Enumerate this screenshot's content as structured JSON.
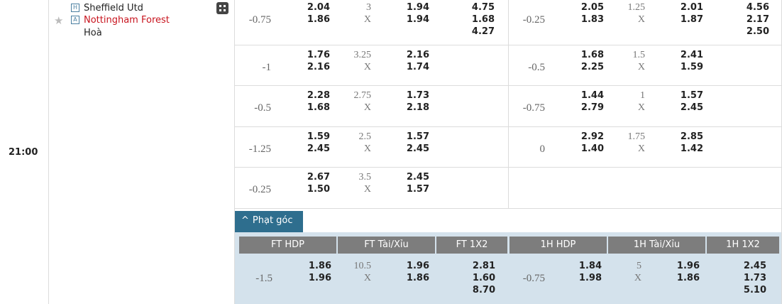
{
  "match": {
    "time": "21:00",
    "home_badge": "H",
    "home": "Sheffield Utd",
    "away_badge": "A",
    "away": "Nottingham Forest",
    "draw": "Hoà"
  },
  "odds_rows": [
    {
      "ft": {
        "hdp": "-0.75",
        "hdp_odds": [
          "2.04",
          "1.86"
        ],
        "ou_line": "3",
        "ou_mid": "X",
        "ou_odds": [
          "1.94",
          "1.94"
        ],
        "x12": [
          "4.75",
          "1.68",
          "4.27"
        ]
      },
      "h1": {
        "hdp": "-0.25",
        "hdp_odds": [
          "2.05",
          "1.83"
        ],
        "ou_line": "1.25",
        "ou_mid": "X",
        "ou_odds": [
          "2.01",
          "1.87"
        ],
        "x12": [
          "4.56",
          "2.17",
          "2.50"
        ]
      }
    },
    {
      "ft": {
        "hdp": "-1",
        "hdp_odds": [
          "1.76",
          "2.16"
        ],
        "ou_line": "3.25",
        "ou_mid": "X",
        "ou_odds": [
          "2.16",
          "1.74"
        ]
      },
      "h1": {
        "hdp": "-0.5",
        "hdp_odds": [
          "1.68",
          "2.25"
        ],
        "ou_line": "1.5",
        "ou_mid": "X",
        "ou_odds": [
          "2.41",
          "1.59"
        ]
      }
    },
    {
      "ft": {
        "hdp": "-0.5",
        "hdp_odds": [
          "2.28",
          "1.68"
        ],
        "ou_line": "2.75",
        "ou_mid": "X",
        "ou_odds": [
          "1.73",
          "2.18"
        ]
      },
      "h1": {
        "hdp": "-0.75",
        "hdp_odds": [
          "1.44",
          "2.79"
        ],
        "ou_line": "1",
        "ou_mid": "X",
        "ou_odds": [
          "1.57",
          "2.45"
        ]
      }
    },
    {
      "ft": {
        "hdp": "-1.25",
        "hdp_odds": [
          "1.59",
          "2.45"
        ],
        "ou_line": "2.5",
        "ou_mid": "X",
        "ou_odds": [
          "1.57",
          "2.45"
        ]
      },
      "h1": {
        "hdp": "0",
        "hdp_odds": [
          "2.92",
          "1.40"
        ],
        "ou_line": "1.75",
        "ou_mid": "X",
        "ou_odds": [
          "2.85",
          "1.42"
        ]
      }
    },
    {
      "ft": {
        "hdp": "-0.25",
        "hdp_odds": [
          "2.67",
          "1.50"
        ],
        "ou_line": "3.5",
        "ou_mid": "X",
        "ou_odds": [
          "2.45",
          "1.57"
        ]
      }
    }
  ],
  "corner": {
    "tab": "Phạt góc",
    "headers": [
      "FT HDP",
      "FT Tài/Xỉu",
      "FT 1X2",
      "1H HDP",
      "1H Tài/Xỉu",
      "1H 1X2"
    ],
    "row": {
      "ft": {
        "hdp": "-1.5",
        "hdp_odds": [
          "1.86",
          "1.96"
        ],
        "ou_line": "10.5",
        "ou_mid": "X",
        "ou_odds": [
          "1.96",
          "1.86"
        ],
        "x12": [
          "2.81",
          "1.60",
          "8.70"
        ]
      },
      "h1": {
        "hdp": "-0.75",
        "hdp_odds": [
          "1.84",
          "1.98"
        ],
        "ou_line": "5",
        "ou_mid": "X",
        "ou_odds": [
          "1.96",
          "1.86"
        ],
        "x12": [
          "2.45",
          "1.73",
          "5.10"
        ]
      }
    }
  }
}
